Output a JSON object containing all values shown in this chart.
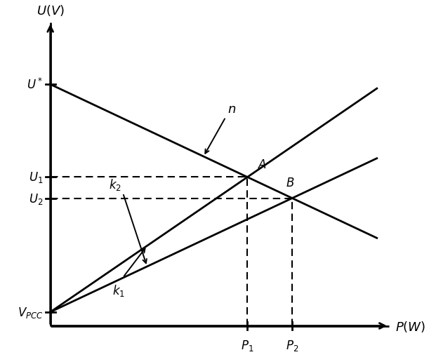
{
  "figsize": [
    6.11,
    5.1
  ],
  "dpi": 100,
  "bg_color": "white",
  "line_color": "black",
  "line_width": 2.0,
  "xlim": [
    0,
    10
  ],
  "ylim": [
    0,
    10
  ],
  "ax_origin_x": 1.2,
  "ax_origin_y": 0.8,
  "ax_top_y": 9.6,
  "ax_right_x": 9.6,
  "U_star": 7.8,
  "V_PCC": 1.2,
  "n_slope": -0.55,
  "k1_slope": 0.8,
  "k2_slope": 0.55,
  "dashed_color": "black",
  "dashed_lw": 1.5
}
